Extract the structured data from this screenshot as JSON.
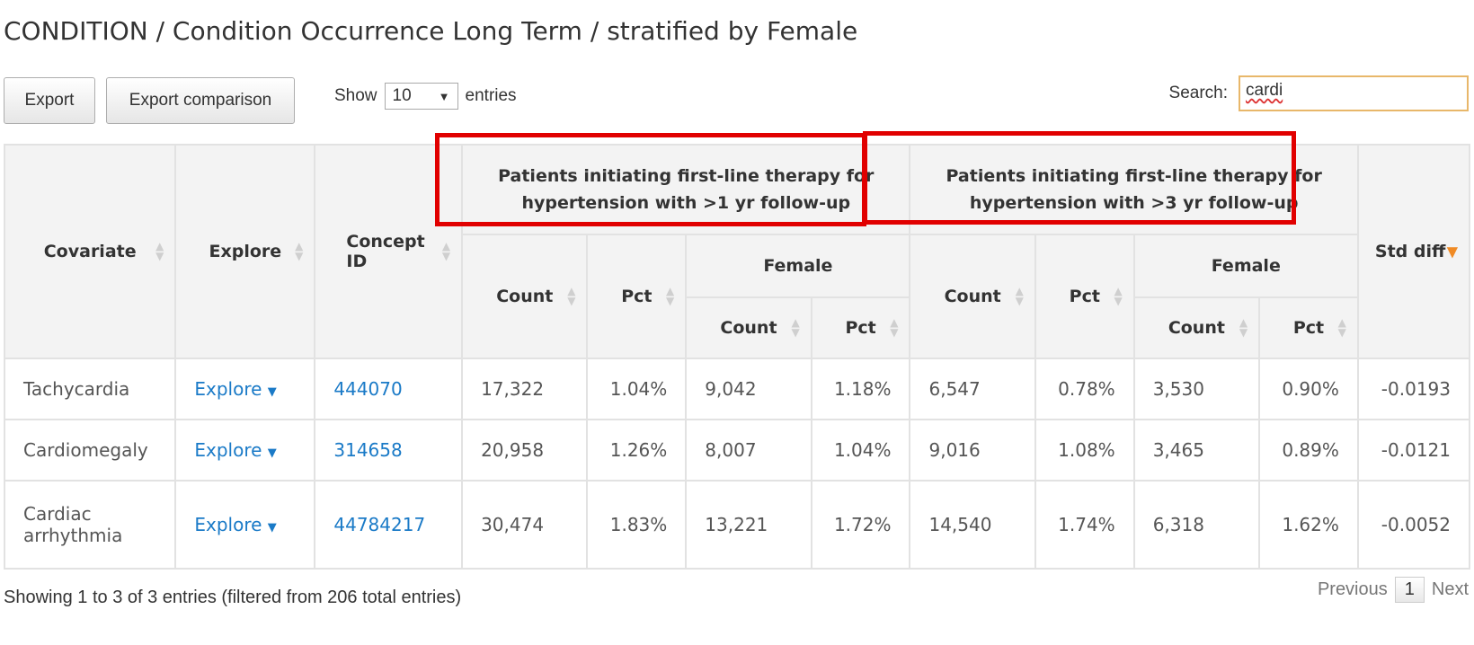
{
  "page": {
    "title": "CONDITION / Condition Occurrence Long Term / stratified by Female"
  },
  "toolbar": {
    "export_label": "Export",
    "export_comparison_label": "Export comparison",
    "show_label": "Show",
    "entries_label": "entries",
    "page_size": "10",
    "search_label": "Search:",
    "search_value": "cardi"
  },
  "table": {
    "headers": {
      "covariate": "Covariate",
      "explore": "Explore",
      "concept_id": "Concept ID",
      "group1": "Patients initiating first-line therapy for hypertension with >1 yr follow-up",
      "group2": "Patients initiating first-line therapy for hypertension with >3 yr follow-up",
      "std_diff": "Std diff",
      "count": "Count",
      "pct": "Pct",
      "female": "Female"
    },
    "rows": [
      {
        "covariate": "Tachycardia",
        "explore": "Explore",
        "concept_id": "444070",
        "g1_count": "17,322",
        "g1_pct": "1.04%",
        "g1_f_count": "9,042",
        "g1_f_pct": "1.18%",
        "g2_count": "6,547",
        "g2_pct": "0.78%",
        "g2_f_count": "3,530",
        "g2_f_pct": "0.90%",
        "std_diff": "-0.0193"
      },
      {
        "covariate": "Cardiomegaly",
        "explore": "Explore",
        "concept_id": "314658",
        "g1_count": "20,958",
        "g1_pct": "1.26%",
        "g1_f_count": "8,007",
        "g1_f_pct": "1.04%",
        "g2_count": "9,016",
        "g2_pct": "1.08%",
        "g2_f_count": "3,465",
        "g2_f_pct": "0.89%",
        "std_diff": "-0.0121"
      },
      {
        "covariate": "Cardiac arrhythmia",
        "explore": "Explore",
        "concept_id": "44784217",
        "g1_count": "30,474",
        "g1_pct": "1.83%",
        "g1_f_count": "13,221",
        "g1_f_pct": "1.72%",
        "g2_count": "14,540",
        "g2_pct": "1.74%",
        "g2_f_count": "6,318",
        "g2_f_pct": "1.62%",
        "std_diff": "-0.0052"
      }
    ]
  },
  "footer": {
    "info": "Showing 1 to 3 of 3 entries (filtered from 206 total entries)",
    "previous": "Previous",
    "page": "1",
    "next": "Next"
  },
  "colors": {
    "link": "#1a7ac7",
    "highlight_box": "#e10000",
    "sort_active": "#f08a24"
  }
}
